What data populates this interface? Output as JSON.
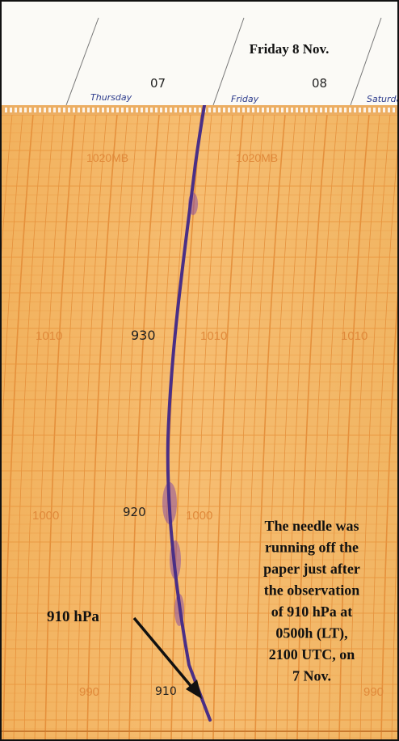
{
  "header": {
    "date_label": "Friday 8 Nov."
  },
  "day_columns": [
    {
      "weekday": "Thursday",
      "day": "07"
    },
    {
      "weekday": "Friday",
      "day": "08"
    },
    {
      "weekday": "Saturday",
      "day": ""
    }
  ],
  "pressure_gridlines": [
    {
      "label": "1020MB"
    },
    {
      "label": "1010"
    },
    {
      "label": "1000"
    },
    {
      "label": "990"
    }
  ],
  "handwritten_marks": [
    "930",
    "920",
    "910"
  ],
  "callout": {
    "label": "910 hPa"
  },
  "caption": {
    "lines": [
      "The needle was",
      "running off the",
      "paper just after",
      "the observation",
      "of 910 hPa at",
      "0500h (LT),",
      "2100 UTC, on",
      "7 Nov."
    ]
  },
  "colors": {
    "paper_orange": "#f4b969",
    "grid_line": "#e6913a",
    "trace_purple": "#4a2f86",
    "smudge_purple": "#8a4fa0"
  }
}
